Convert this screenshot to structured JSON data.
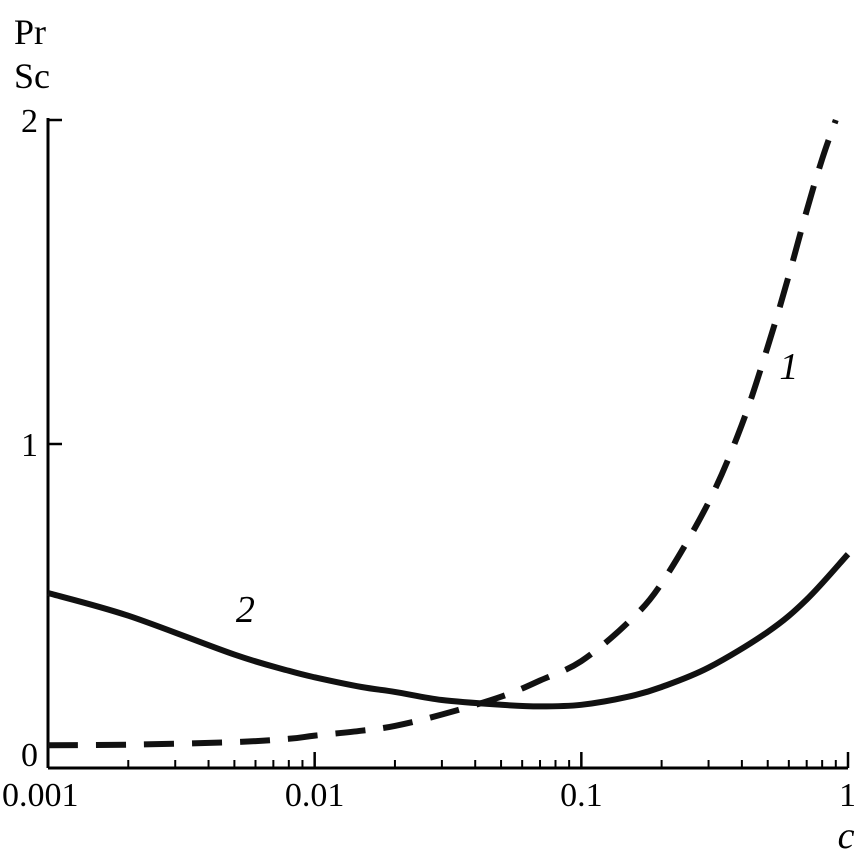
{
  "chart_data": {
    "type": "line",
    "x_scale": "log",
    "xlabel": "c",
    "ylabel": [
      "Pr",
      "Sc"
    ],
    "xlim": [
      0.001,
      1
    ],
    "ylim": [
      0,
      2
    ],
    "x_ticks": [
      {
        "value": 0.001,
        "label": "0.001"
      },
      {
        "value": 0.01,
        "label": "0.01"
      },
      {
        "value": 0.1,
        "label": "0.1"
      },
      {
        "value": 1,
        "label": "1"
      }
    ],
    "y_ticks": [
      {
        "value": 0,
        "label": "0"
      },
      {
        "value": 1,
        "label": "1"
      },
      {
        "value": 2,
        "label": "2"
      }
    ],
    "grid": false,
    "series": [
      {
        "name": "1",
        "style": "dashed",
        "label_at": {
          "x": 0.6,
          "y": 1.2
        },
        "x": [
          0.001,
          0.002,
          0.005,
          0.008,
          0.01,
          0.015,
          0.02,
          0.03,
          0.05,
          0.07,
          0.1,
          0.15,
          0.2,
          0.3,
          0.4,
          0.5,
          0.6,
          0.7,
          0.8,
          0.9
        ],
        "y": [
          0.07,
          0.072,
          0.08,
          0.09,
          0.1,
          0.115,
          0.13,
          0.165,
          0.22,
          0.27,
          0.33,
          0.45,
          0.57,
          0.82,
          1.06,
          1.3,
          1.52,
          1.72,
          1.88,
          2.0
        ]
      },
      {
        "name": "2",
        "style": "solid",
        "label_at": {
          "x": 0.0055,
          "y": 0.45
        },
        "x": [
          0.001,
          0.002,
          0.005,
          0.008,
          0.01,
          0.015,
          0.02,
          0.03,
          0.05,
          0.07,
          0.1,
          0.15,
          0.2,
          0.3,
          0.5,
          0.7,
          1.0
        ],
        "y": [
          0.54,
          0.47,
          0.35,
          0.3,
          0.28,
          0.25,
          0.235,
          0.21,
          0.195,
          0.19,
          0.195,
          0.22,
          0.25,
          0.31,
          0.42,
          0.52,
          0.66
        ]
      }
    ]
  }
}
